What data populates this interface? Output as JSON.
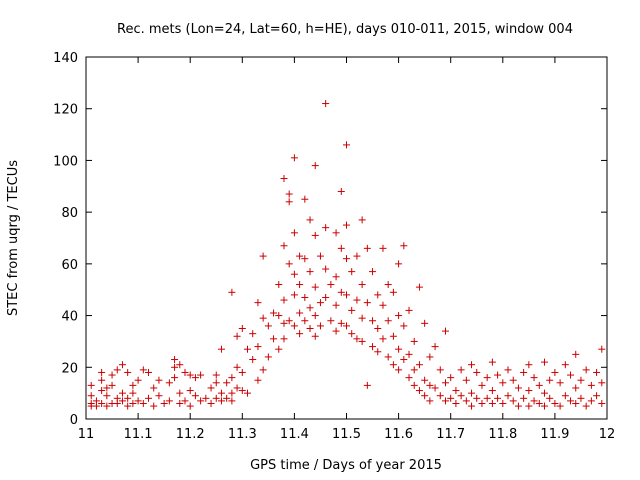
{
  "chart_data": {
    "type": "scatter",
    "title": "Rec. mets (Lon=24, Lat=60, h=HE), days 010-011, 2015, window 004",
    "xlabel": "GPS time / Days of year 2015",
    "ylabel": "STEC from uqrg / TECUs",
    "xlim": [
      11.0,
      12.0
    ],
    "ylim": [
      0,
      140
    ],
    "xticks": [
      11,
      11.1,
      11.2,
      11.3,
      11.4,
      11.5,
      11.6,
      11.7,
      11.8,
      11.9,
      12
    ],
    "xtick_labels": [
      "11",
      "11.1",
      "11.2",
      "11.3",
      "11.4",
      "11.5",
      "11.6",
      "11.7",
      "11.8",
      "11.9",
      "12"
    ],
    "yticks": [
      0,
      20,
      40,
      60,
      80,
      100,
      120,
      140
    ],
    "ytick_labels": [
      "0",
      "20",
      "40",
      "60",
      "80",
      "100",
      "120",
      "140"
    ],
    "grid": false,
    "marker": "plus",
    "color": "#cc0000",
    "series": [
      {
        "points": [
          [
            11.01,
            13
          ],
          [
            11.01,
            9
          ],
          [
            11.01,
            6
          ],
          [
            11.01,
            5
          ],
          [
            11.02,
            7
          ],
          [
            11.02,
            5
          ],
          [
            11.03,
            18
          ],
          [
            11.03,
            15
          ],
          [
            11.03,
            11
          ],
          [
            11.03,
            6
          ],
          [
            11.04,
            9
          ],
          [
            11.04,
            12
          ],
          [
            11.04,
            5
          ],
          [
            11.05,
            17
          ],
          [
            11.05,
            13
          ],
          [
            11.05,
            6
          ],
          [
            11.06,
            19
          ],
          [
            11.06,
            8
          ],
          [
            11.06,
            6
          ],
          [
            11.07,
            21
          ],
          [
            11.07,
            10
          ],
          [
            11.07,
            7
          ],
          [
            11.08,
            18
          ],
          [
            11.08,
            5
          ],
          [
            11.08,
            8
          ],
          [
            11.09,
            13
          ],
          [
            11.09,
            10
          ],
          [
            11.09,
            6
          ],
          [
            11.1,
            15
          ],
          [
            11.1,
            7
          ],
          [
            11.11,
            19
          ],
          [
            11.11,
            6
          ],
          [
            11.12,
            18
          ],
          [
            11.12,
            8
          ],
          [
            11.13,
            12
          ],
          [
            11.13,
            5
          ],
          [
            11.14,
            15
          ],
          [
            11.14,
            9
          ],
          [
            11.15,
            6
          ],
          [
            11.16,
            14
          ],
          [
            11.16,
            7
          ],
          [
            11.17,
            23
          ],
          [
            11.17,
            20
          ],
          [
            11.17,
            16
          ],
          [
            11.18,
            21
          ],
          [
            11.18,
            10
          ],
          [
            11.18,
            6
          ],
          [
            11.19,
            18
          ],
          [
            11.19,
            7
          ],
          [
            11.2,
            17
          ],
          [
            11.2,
            11
          ],
          [
            11.2,
            5
          ],
          [
            11.21,
            16
          ],
          [
            11.21,
            9
          ],
          [
            11.22,
            17
          ],
          [
            11.22,
            7
          ],
          [
            11.23,
            8
          ],
          [
            11.24,
            12
          ],
          [
            11.24,
            6
          ],
          [
            11.25,
            17
          ],
          [
            11.25,
            14
          ],
          [
            11.25,
            8
          ],
          [
            11.26,
            27
          ],
          [
            11.26,
            10
          ],
          [
            11.26,
            7
          ],
          [
            11.27,
            14
          ],
          [
            11.27,
            8
          ],
          [
            11.28,
            49
          ],
          [
            11.28,
            16
          ],
          [
            11.28,
            10
          ],
          [
            11.28,
            7
          ],
          [
            11.29,
            32
          ],
          [
            11.29,
            20
          ],
          [
            11.29,
            12
          ],
          [
            11.3,
            35
          ],
          [
            11.3,
            18
          ],
          [
            11.3,
            11
          ],
          [
            11.31,
            27
          ],
          [
            11.31,
            10
          ],
          [
            11.32,
            33
          ],
          [
            11.32,
            23
          ],
          [
            11.33,
            45
          ],
          [
            11.33,
            28
          ],
          [
            11.33,
            15
          ],
          [
            11.34,
            63
          ],
          [
            11.34,
            39
          ],
          [
            11.34,
            19
          ],
          [
            11.35,
            36
          ],
          [
            11.35,
            24
          ],
          [
            11.36,
            41
          ],
          [
            11.36,
            31
          ],
          [
            11.37,
            52
          ],
          [
            11.37,
            40
          ],
          [
            11.37,
            27
          ],
          [
            11.38,
            93
          ],
          [
            11.38,
            67
          ],
          [
            11.38,
            46
          ],
          [
            11.38,
            37
          ],
          [
            11.38,
            31
          ],
          [
            11.39,
            87
          ],
          [
            11.39,
            84
          ],
          [
            11.39,
            60
          ],
          [
            11.39,
            38
          ],
          [
            11.4,
            101
          ],
          [
            11.4,
            72
          ],
          [
            11.4,
            56
          ],
          [
            11.4,
            48
          ],
          [
            11.4,
            36
          ],
          [
            11.41,
            63
          ],
          [
            11.41,
            52
          ],
          [
            11.41,
            41
          ],
          [
            11.41,
            33
          ],
          [
            11.42,
            85
          ],
          [
            11.42,
            62
          ],
          [
            11.42,
            47
          ],
          [
            11.42,
            38
          ],
          [
            11.43,
            77
          ],
          [
            11.43,
            57
          ],
          [
            11.43,
            43
          ],
          [
            11.43,
            35
          ],
          [
            11.44,
            98
          ],
          [
            11.44,
            71
          ],
          [
            11.44,
            51
          ],
          [
            11.44,
            40
          ],
          [
            11.44,
            32
          ],
          [
            11.45,
            63
          ],
          [
            11.45,
            45
          ],
          [
            11.45,
            36
          ],
          [
            11.46,
            122
          ],
          [
            11.46,
            74
          ],
          [
            11.46,
            58
          ],
          [
            11.46,
            47
          ],
          [
            11.47,
            52
          ],
          [
            11.47,
            38
          ],
          [
            11.48,
            72
          ],
          [
            11.48,
            55
          ],
          [
            11.48,
            44
          ],
          [
            11.48,
            34
          ],
          [
            11.49,
            88
          ],
          [
            11.49,
            66
          ],
          [
            11.49,
            49
          ],
          [
            11.49,
            37
          ],
          [
            11.5,
            106
          ],
          [
            11.5,
            75
          ],
          [
            11.5,
            62
          ],
          [
            11.5,
            48
          ],
          [
            11.5,
            36
          ],
          [
            11.51,
            57
          ],
          [
            11.51,
            42
          ],
          [
            11.51,
            33
          ],
          [
            11.52,
            63
          ],
          [
            11.52,
            46
          ],
          [
            11.52,
            31
          ],
          [
            11.53,
            77
          ],
          [
            11.53,
            52
          ],
          [
            11.53,
            39
          ],
          [
            11.53,
            30
          ],
          [
            11.54,
            66
          ],
          [
            11.54,
            45
          ],
          [
            11.54,
            13
          ],
          [
            11.55,
            57
          ],
          [
            11.55,
            38
          ],
          [
            11.55,
            28
          ],
          [
            11.56,
            48
          ],
          [
            11.56,
            35
          ],
          [
            11.56,
            26
          ],
          [
            11.57,
            66
          ],
          [
            11.57,
            44
          ],
          [
            11.57,
            31
          ],
          [
            11.58,
            52
          ],
          [
            11.58,
            38
          ],
          [
            11.58,
            24
          ],
          [
            11.59,
            49
          ],
          [
            11.59,
            32
          ],
          [
            11.59,
            21
          ],
          [
            11.6,
            60
          ],
          [
            11.6,
            40
          ],
          [
            11.6,
            27
          ],
          [
            11.6,
            19
          ],
          [
            11.61,
            67
          ],
          [
            11.61,
            36
          ],
          [
            11.61,
            23
          ],
          [
            11.62,
            42
          ],
          [
            11.62,
            25
          ],
          [
            11.62,
            16
          ],
          [
            11.63,
            30
          ],
          [
            11.63,
            19
          ],
          [
            11.63,
            13
          ],
          [
            11.64,
            51
          ],
          [
            11.64,
            21
          ],
          [
            11.64,
            11
          ],
          [
            11.65,
            37
          ],
          [
            11.65,
            15
          ],
          [
            11.65,
            9
          ],
          [
            11.66,
            24
          ],
          [
            11.66,
            13
          ],
          [
            11.66,
            7
          ],
          [
            11.67,
            28
          ],
          [
            11.67,
            12
          ],
          [
            11.68,
            19
          ],
          [
            11.68,
            9
          ],
          [
            11.69,
            34
          ],
          [
            11.69,
            14
          ],
          [
            11.69,
            7
          ],
          [
            11.7,
            16
          ],
          [
            11.7,
            8
          ],
          [
            11.71,
            11
          ],
          [
            11.71,
            6
          ],
          [
            11.72,
            19
          ],
          [
            11.72,
            9
          ],
          [
            11.73,
            15
          ],
          [
            11.73,
            7
          ],
          [
            11.74,
            21
          ],
          [
            11.74,
            10
          ],
          [
            11.74,
            5
          ],
          [
            11.75,
            18
          ],
          [
            11.75,
            8
          ],
          [
            11.76,
            13
          ],
          [
            11.76,
            6
          ],
          [
            11.77,
            16
          ],
          [
            11.77,
            8
          ],
          [
            11.78,
            22
          ],
          [
            11.78,
            11
          ],
          [
            11.78,
            6
          ],
          [
            11.79,
            17
          ],
          [
            11.79,
            8
          ],
          [
            11.8,
            14
          ],
          [
            11.8,
            6
          ],
          [
            11.81,
            19
          ],
          [
            11.81,
            9
          ],
          [
            11.82,
            15
          ],
          [
            11.82,
            7
          ],
          [
            11.83,
            12
          ],
          [
            11.83,
            5
          ],
          [
            11.84,
            18
          ],
          [
            11.84,
            8
          ],
          [
            11.85,
            21
          ],
          [
            11.85,
            11
          ],
          [
            11.85,
            5
          ],
          [
            11.86,
            16
          ],
          [
            11.86,
            7
          ],
          [
            11.87,
            13
          ],
          [
            11.87,
            6
          ],
          [
            11.88,
            22
          ],
          [
            11.88,
            10
          ],
          [
            11.88,
            5
          ],
          [
            11.89,
            15
          ],
          [
            11.89,
            8
          ],
          [
            11.9,
            18
          ],
          [
            11.9,
            6
          ],
          [
            11.91,
            14
          ],
          [
            11.91,
            5
          ],
          [
            11.92,
            21
          ],
          [
            11.92,
            9
          ],
          [
            11.93,
            17
          ],
          [
            11.93,
            7
          ],
          [
            11.94,
            25
          ],
          [
            11.94,
            12
          ],
          [
            11.94,
            6
          ],
          [
            11.95,
            15
          ],
          [
            11.95,
            8
          ],
          [
            11.96,
            19
          ],
          [
            11.96,
            5
          ],
          [
            11.97,
            13
          ],
          [
            11.97,
            7
          ],
          [
            11.98,
            18
          ],
          [
            11.98,
            9
          ],
          [
            11.99,
            27
          ],
          [
            11.99,
            14
          ],
          [
            11.99,
            6
          ]
        ]
      }
    ]
  }
}
